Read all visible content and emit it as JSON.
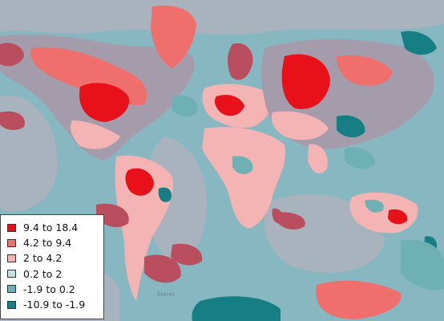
{
  "legend": {
    "items": [
      {
        "label": "9.4 to 18.4",
        "color": "#e8111a"
      },
      {
        "label": "4.2 to 9.4",
        "color": "#ef6f6c"
      },
      {
        "label": "2 to 4.2",
        "color": "#f4b4b4"
      },
      {
        "label": "0.2 to 2",
        "color": "#c3e2df"
      },
      {
        "label": "-1.9 to 0.2",
        "color": "#6fb0b4"
      },
      {
        "label": "-10.9 to -1.9",
        "color": "#167f84"
      }
    ]
  },
  "palette": {
    "ocean": "#87b7c1",
    "ocean_mid": "#a8b3bd",
    "land_base": "#a59cab",
    "dark_red": "#b84e5e",
    "mid_red": "#ef6f6c",
    "bright_red": "#e8111a",
    "light_red": "#f4b4b4",
    "teal": "#167f84",
    "light_teal": "#6fb0b4"
  }
}
